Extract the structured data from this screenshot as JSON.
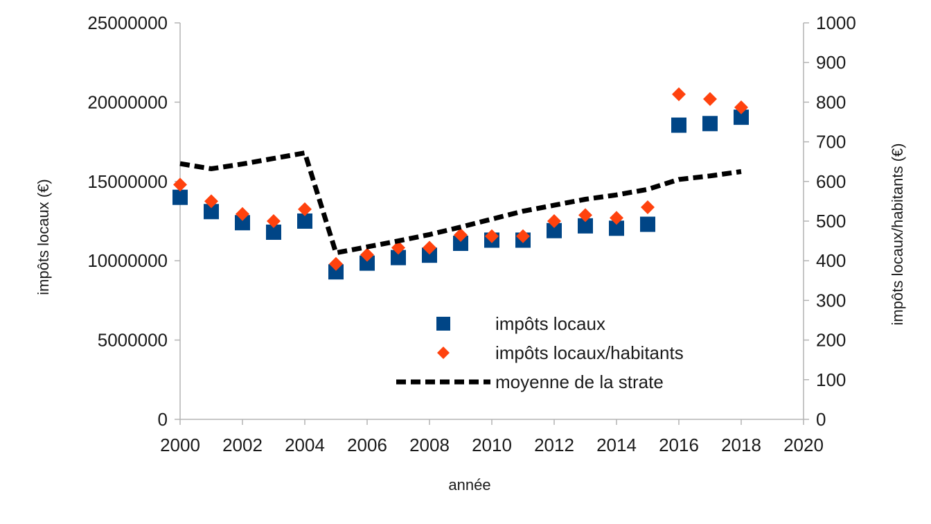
{
  "chart_data": {
    "type": "scatter",
    "xlabel": "année",
    "ylabel_left": "impôts locaux (€)",
    "ylabel_right": "impôts locaux/habitants (€)",
    "xlim": [
      2000,
      2020
    ],
    "ylim_left": [
      0,
      25000000
    ],
    "ylim_right": [
      0,
      1000
    ],
    "x_ticks": [
      "2000",
      "2002",
      "2004",
      "2006",
      "2008",
      "2010",
      "2012",
      "2014",
      "2016",
      "2018",
      "2020"
    ],
    "y_left_ticks": [
      "0",
      "5000000",
      "10000000",
      "15000000",
      "20000000",
      "25000000"
    ],
    "y_right_ticks": [
      "0",
      "100",
      "200",
      "300",
      "400",
      "500",
      "600",
      "700",
      "800",
      "900",
      "1000"
    ],
    "grid": false,
    "legend_position": "bottom-center",
    "series": [
      {
        "name": "impôts locaux",
        "axis": "left",
        "marker": "square",
        "color": "#004586",
        "x": [
          2000,
          2001,
          2002,
          2003,
          2004,
          2005,
          2006,
          2007,
          2008,
          2009,
          2010,
          2011,
          2012,
          2013,
          2014,
          2015,
          2016,
          2017,
          2018
        ],
        "y": [
          14000000,
          13100000,
          12400000,
          11800000,
          12500000,
          9300000,
          9850000,
          10200000,
          10350000,
          11100000,
          11300000,
          11300000,
          11900000,
          12200000,
          12050000,
          12300000,
          18550000,
          18650000,
          19050000
        ]
      },
      {
        "name": "impôts locaux/habitants",
        "axis": "right",
        "marker": "diamond",
        "color": "#ff420e",
        "x": [
          2000,
          2001,
          2002,
          2003,
          2004,
          2005,
          2006,
          2007,
          2008,
          2009,
          2010,
          2011,
          2012,
          2013,
          2014,
          2015,
          2016,
          2017,
          2018
        ],
        "y": [
          592,
          550,
          518,
          500,
          530,
          392,
          415,
          433,
          433,
          465,
          462,
          462,
          500,
          515,
          508,
          535,
          820,
          808,
          787
        ]
      },
      {
        "name": "moyenne de la strate",
        "axis": "right",
        "marker": "dashed-line",
        "color": "#000000",
        "x": [
          2000,
          2001,
          2002,
          2003,
          2004,
          2005,
          2006,
          2007,
          2008,
          2009,
          2010,
          2011,
          2012,
          2013,
          2014,
          2015,
          2016,
          2017,
          2018
        ],
        "y": [
          645,
          632,
          644,
          658,
          672,
          420,
          435,
          450,
          466,
          485,
          505,
          525,
          540,
          555,
          566,
          580,
          605,
          614,
          625
        ]
      }
    ]
  }
}
